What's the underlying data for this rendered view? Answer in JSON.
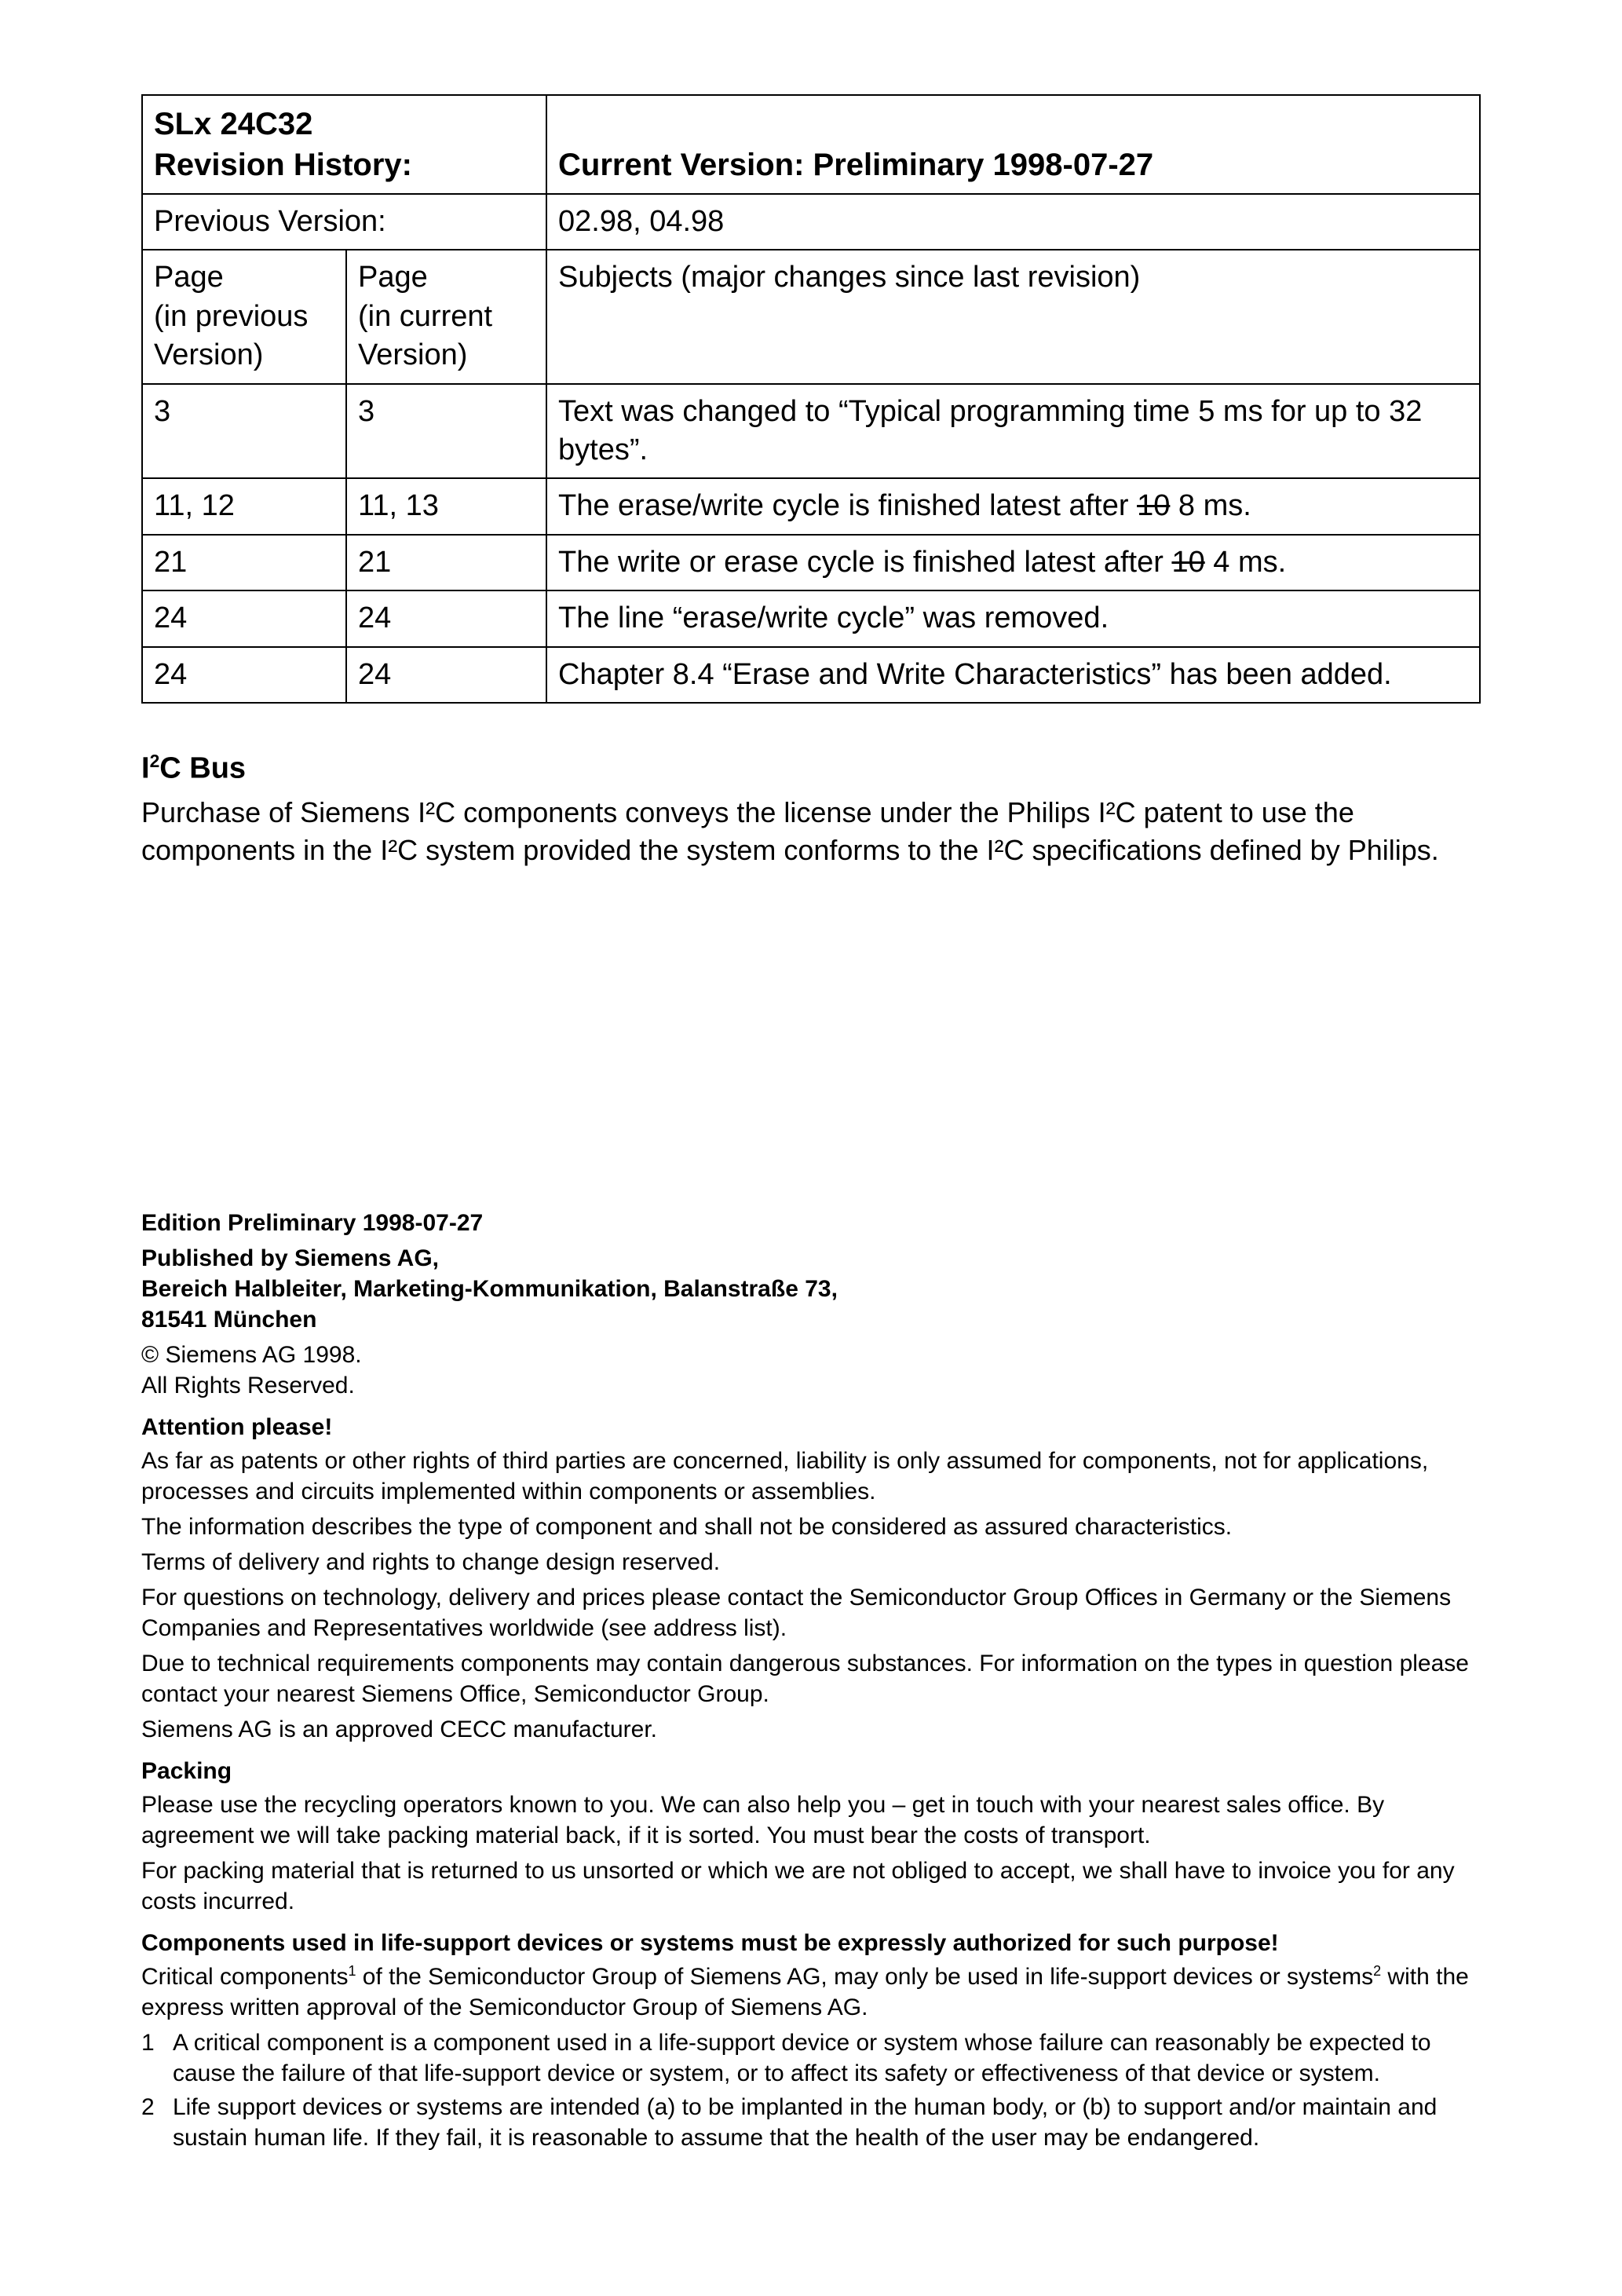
{
  "table": {
    "title_row": {
      "part": "SLx 24C32",
      "rev_label": "Revision History:",
      "current_label": "Current Version: Preliminary 1998-07-27"
    },
    "prev_row": {
      "label": "Previous Version:",
      "value": "02.98, 04.98"
    },
    "header_row": {
      "col_a": "Page\n(in previous Version)",
      "col_b": "Page\n(in current Version)",
      "col_c": "Subjects (major changes since last revision)"
    },
    "rows": [
      {
        "a": "3",
        "b": "3",
        "c": "Text was changed to “Typical programming time 5 ms for up to 32 bytes”."
      },
      {
        "a": "11, 12",
        "b": "11, 13",
        "c_pre": "The erase/write cycle is finished latest after ",
        "c_strike": "10",
        "c_post": " 8 ms."
      },
      {
        "a": "21",
        "b": "21",
        "c_pre": "The write or erase cycle is finished latest after ",
        "c_strike": "10",
        "c_post": " 4 ms."
      },
      {
        "a": "24",
        "b": "24",
        "c": "The line “erase/write cycle” was removed."
      },
      {
        "a": "24",
        "b": "24",
        "c": "Chapter 8.4 “Erase and Write Characteristics” has been added."
      }
    ]
  },
  "i2c": {
    "heading_pre": "I",
    "heading_sup": "2",
    "heading_post": "C Bus",
    "body": "Purchase of Siemens I²C components conveys the license under the Philips I²C patent to use the components in the I²C system provided the system conforms to the I²C specifications defined by Philips."
  },
  "legal": {
    "edition": "Edition Preliminary 1998-07-27",
    "publisher": "Published by Siemens AG,\nBereich Halbleiter, Marketing-Kommunikation, Balanstraße 73,\n81541 München",
    "copyright": "© Siemens AG 1998.\nAll Rights Reserved.",
    "attention_heading": "Attention please!",
    "attention_paras": [
      "As far as patents or other rights of third parties are concerned, liability is only assumed for components, not for applications, processes and circuits implemented within components or assemblies.",
      "The information describes the type of component and shall not be considered as assured characteristics.",
      "Terms of delivery and rights to change design reserved.",
      "For questions on technology, delivery and prices please contact the Semiconductor Group Offices in Germany or the Siemens Companies and Representatives worldwide (see address list).",
      "Due to technical requirements components may contain dangerous substances. For information on the types in question please contact your nearest Siemens Office, Semiconductor Group.",
      "Siemens AG is an approved CECC manufacturer."
    ],
    "packing_heading": "Packing",
    "packing_paras": [
      "Please use the recycling operators known to you. We can also help you – get in touch with your nearest sales office. By agreement we will take packing material back, if it is sorted. You must bear the costs of transport.",
      "For packing material that is returned to us unsorted or which we are not obliged to accept, we shall have to invoice you for any costs incurred."
    ],
    "life_heading": "Components used in life-support devices or systems must be expressly authorized for such purpose!",
    "life_body_pre": "Critical components",
    "life_body_sup1": "1",
    "life_body_mid": " of the Semiconductor Group of Siemens AG, may only be used in life-support devices or systems",
    "life_body_sup2": "2",
    "life_body_post": " with the express written approval of the Semiconductor Group of Siemens AG.",
    "footnotes": [
      {
        "n": "1",
        "t": "A critical component is a component used in a life-support device or system whose failure can reasonably be expected to cause the failure of that life-support device or system, or to affect its safety or effectiveness of that device or system."
      },
      {
        "n": "2",
        "t": "Life support devices or systems are intended (a) to be implanted in the human body, or (b) to support and/or maintain and sustain human life. If they fail, it is reasonable to assume that the health of the user may be endangered."
      }
    ]
  }
}
